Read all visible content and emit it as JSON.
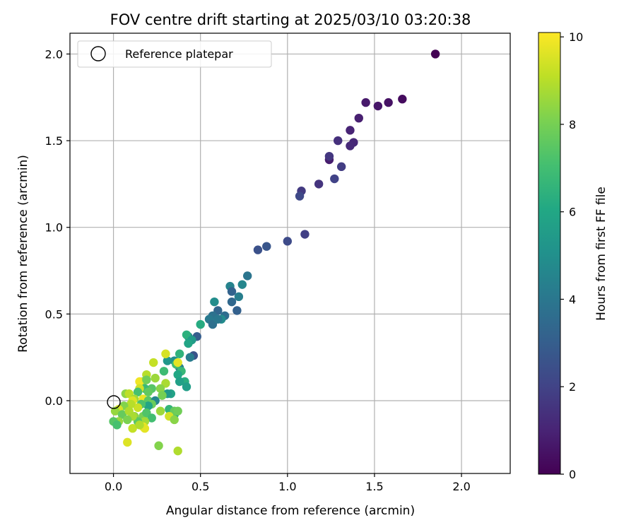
{
  "chart_data": {
    "type": "scatter",
    "title": "FOV centre drift starting at 2025/03/10 03:20:38",
    "xlabel": "Angular distance from reference (arcmin)",
    "ylabel": "Rotation from reference (arcmin)",
    "xlim": [
      -0.25,
      2.28
    ],
    "ylim": [
      -0.42,
      2.12
    ],
    "xticks": [
      0.0,
      0.5,
      1.0,
      1.5,
      2.0
    ],
    "xtick_labels": [
      "0.0",
      "0.5",
      "1.0",
      "1.5",
      "2.0"
    ],
    "yticks": [
      0.0,
      0.5,
      1.0,
      1.5,
      2.0
    ],
    "ytick_labels": [
      "0.0",
      "0.5",
      "1.0",
      "1.5",
      "2.0"
    ],
    "grid": true,
    "legend": {
      "location": "upper-left",
      "entries": [
        {
          "label": "Reference platepar",
          "marker": "open-circle",
          "x": 0.0,
          "y": 0.0
        }
      ]
    },
    "colorbar": {
      "label": "Hours from first FF file",
      "min": 0,
      "max": 10.1,
      "ticks": [
        0,
        2,
        4,
        6,
        8,
        10
      ],
      "tick_labels": [
        "0",
        "2",
        "4",
        "6",
        "8",
        "10"
      ],
      "colormap": "viridis"
    },
    "series": [
      {
        "points": [
          [
            1.85,
            2.0,
            0.0
          ],
          [
            1.66,
            1.74,
            0.3
          ],
          [
            1.58,
            1.72,
            0.5
          ],
          [
            1.52,
            1.7,
            0.6
          ],
          [
            1.45,
            1.72,
            0.7
          ],
          [
            1.41,
            1.63,
            0.9
          ],
          [
            1.36,
            1.56,
            1.0
          ],
          [
            1.38,
            1.49,
            1.1
          ],
          [
            1.36,
            1.47,
            1.2
          ],
          [
            1.29,
            1.5,
            1.4
          ],
          [
            1.24,
            1.39,
            0.8
          ],
          [
            1.24,
            1.41,
            1.6
          ],
          [
            1.31,
            1.35,
            1.8
          ],
          [
            1.27,
            1.28,
            2.0
          ],
          [
            1.18,
            1.25,
            1.5
          ],
          [
            1.08,
            1.21,
            1.7
          ],
          [
            1.07,
            1.18,
            2.2
          ],
          [
            1.1,
            0.96,
            1.9
          ],
          [
            1.0,
            0.92,
            2.3
          ],
          [
            0.88,
            0.89,
            2.7
          ],
          [
            0.83,
            0.87,
            2.5
          ],
          [
            0.77,
            0.72,
            3.9
          ],
          [
            0.74,
            0.67,
            4.6
          ],
          [
            0.72,
            0.6,
            4.3
          ],
          [
            0.67,
            0.66,
            4.5
          ],
          [
            0.68,
            0.63,
            3.2
          ],
          [
            0.68,
            0.57,
            3.4
          ],
          [
            0.71,
            0.52,
            3.1
          ],
          [
            0.58,
            0.57,
            4.9
          ],
          [
            0.64,
            0.49,
            3.6
          ],
          [
            0.6,
            0.52,
            3.3
          ],
          [
            0.57,
            0.49,
            3.8
          ],
          [
            0.55,
            0.47,
            4.1
          ],
          [
            0.57,
            0.44,
            3.7
          ],
          [
            0.62,
            0.47,
            4.8
          ],
          [
            0.6,
            0.47,
            4.0
          ],
          [
            0.5,
            0.44,
            6.2
          ],
          [
            0.48,
            0.37,
            3.0
          ],
          [
            0.43,
            0.37,
            4.7
          ],
          [
            0.42,
            0.38,
            6.4
          ],
          [
            0.45,
            0.35,
            5.5
          ],
          [
            0.43,
            0.33,
            5.9
          ],
          [
            0.46,
            0.26,
            2.6
          ],
          [
            0.44,
            0.25,
            4.2
          ],
          [
            0.38,
            0.27,
            6.5
          ],
          [
            0.35,
            0.23,
            5.0
          ],
          [
            0.31,
            0.23,
            5.3
          ],
          [
            0.38,
            0.19,
            4.4
          ],
          [
            0.36,
            0.21,
            7.0
          ],
          [
            0.39,
            0.17,
            6.7
          ],
          [
            0.29,
            0.17,
            6.9
          ],
          [
            0.37,
            0.15,
            6.0
          ],
          [
            0.41,
            0.11,
            6.3
          ],
          [
            0.38,
            0.11,
            5.7
          ],
          [
            0.42,
            0.08,
            5.6
          ],
          [
            0.37,
            0.22,
            9.7
          ],
          [
            0.3,
            0.27,
            9.5
          ],
          [
            0.23,
            0.22,
            9.2
          ],
          [
            0.19,
            0.15,
            9.0
          ],
          [
            0.17,
            0.11,
            8.1
          ],
          [
            0.24,
            0.13,
            8.6
          ],
          [
            0.15,
            0.11,
            9.9
          ],
          [
            0.19,
            0.12,
            7.9
          ],
          [
            0.3,
            0.1,
            8.8
          ],
          [
            0.33,
            0.04,
            5.8
          ],
          [
            0.31,
            0.04,
            5.4
          ],
          [
            0.27,
            0.07,
            8.3
          ],
          [
            0.22,
            0.07,
            7.4
          ],
          [
            0.18,
            0.07,
            6.8
          ],
          [
            0.2,
            0.05,
            7.6
          ],
          [
            0.15,
            0.07,
            9.4
          ],
          [
            0.14,
            0.05,
            7.1
          ],
          [
            0.07,
            0.04,
            8.4
          ],
          [
            0.09,
            0.04,
            9.1
          ],
          [
            0.12,
            0.01,
            8.7
          ],
          [
            0.11,
            0.0,
            9.6
          ],
          [
            0.17,
            0.01,
            9.8
          ],
          [
            0.2,
            0.0,
            7.5
          ],
          [
            0.24,
            0.0,
            4.6
          ],
          [
            0.28,
            0.03,
            8.0
          ],
          [
            0.22,
            -0.02,
            7.8
          ],
          [
            0.2,
            -0.03,
            5.9
          ],
          [
            0.16,
            -0.02,
            7.2
          ],
          [
            0.14,
            -0.04,
            9.3
          ],
          [
            0.1,
            -0.02,
            9.0
          ],
          [
            0.06,
            -0.03,
            8.2
          ],
          [
            0.03,
            -0.05,
            9.5
          ],
          [
            0.01,
            -0.06,
            8.5
          ],
          [
            0.05,
            -0.08,
            7.7
          ],
          [
            0.09,
            -0.06,
            8.9
          ],
          [
            0.12,
            -0.09,
            8.4
          ],
          [
            0.17,
            -0.09,
            8.0
          ],
          [
            0.19,
            -0.07,
            7.3
          ],
          [
            0.27,
            -0.06,
            8.6
          ],
          [
            0.32,
            -0.05,
            6.6
          ],
          [
            0.35,
            -0.08,
            6.1
          ],
          [
            0.35,
            -0.06,
            7.7
          ],
          [
            0.37,
            -0.06,
            7.9
          ],
          [
            0.32,
            -0.09,
            9.4
          ],
          [
            0.35,
            -0.11,
            8.3
          ],
          [
            0.22,
            -0.1,
            7.0
          ],
          [
            0.18,
            -0.12,
            8.7
          ],
          [
            0.14,
            -0.12,
            7.5
          ],
          [
            0.11,
            -0.09,
            8.8
          ],
          [
            0.08,
            -0.11,
            8.1
          ],
          [
            0.03,
            -0.12,
            8.5
          ],
          [
            0.0,
            -0.12,
            7.4
          ],
          [
            0.02,
            -0.14,
            7.1
          ],
          [
            0.17,
            -0.15,
            9.9
          ],
          [
            0.18,
            -0.16,
            9.7
          ],
          [
            0.11,
            -0.16,
            9.2
          ],
          [
            0.15,
            -0.14,
            8.9
          ],
          [
            0.08,
            -0.24,
            9.6
          ],
          [
            0.26,
            -0.26,
            8.2
          ],
          [
            0.37,
            -0.29,
            8.9
          ]
        ]
      }
    ]
  }
}
